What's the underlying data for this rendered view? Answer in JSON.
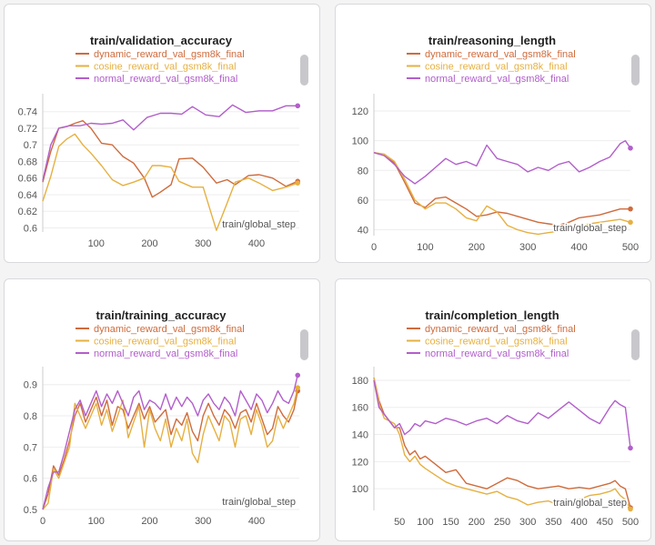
{
  "colors": {
    "dynamic": "#cf6b3c",
    "cosine": "#e6b040",
    "normal": "#b25ecb",
    "tick_text": "#555555",
    "grid": "#eeeeee"
  },
  "chart_data": [
    {
      "id": "validation-accuracy",
      "type": "line",
      "title": "train/validation_accuracy",
      "xlabel": "train/global_step",
      "xlim": [
        0,
        480
      ],
      "ylim": [
        0.595,
        0.755
      ],
      "xticks": [
        100,
        200,
        300,
        400
      ],
      "yticks": [
        0.6,
        0.62,
        0.64,
        0.66,
        0.68,
        0.7,
        0.72,
        0.74
      ],
      "ytick_labels": [
        "0.6",
        "0.62",
        "0.64",
        "0.66",
        "0.68",
        "0.7",
        "0.72",
        "0.74"
      ],
      "legend": [
        "dynamic_reward_val_gsm8k_final",
        "cosine_reward_val_gsm8k_final",
        "normal_reward_val_gsm8k_final"
      ],
      "series": [
        {
          "name": "dynamic_reward_val_gsm8k_final",
          "color_key": "dynamic",
          "x": [
            0,
            15,
            30,
            45,
            60,
            75,
            90,
            110,
            130,
            150,
            170,
            190,
            205,
            220,
            240,
            255,
            280,
            300,
            325,
            345,
            360,
            385,
            405,
            430,
            455,
            477
          ],
          "y": [
            0.655,
            0.692,
            0.72,
            0.722,
            0.726,
            0.729,
            0.72,
            0.702,
            0.7,
            0.686,
            0.678,
            0.66,
            0.637,
            0.643,
            0.652,
            0.683,
            0.684,
            0.673,
            0.654,
            0.658,
            0.652,
            0.663,
            0.664,
            0.66,
            0.65,
            0.656
          ]
        },
        {
          "name": "cosine_reward_val_gsm8k_final",
          "color_key": "cosine",
          "x": [
            0,
            15,
            30,
            45,
            60,
            75,
            90,
            110,
            130,
            150,
            170,
            190,
            205,
            220,
            240,
            255,
            280,
            300,
            325,
            345,
            360,
            385,
            405,
            430,
            455,
            477
          ],
          "y": [
            0.632,
            0.662,
            0.698,
            0.707,
            0.713,
            0.7,
            0.69,
            0.675,
            0.658,
            0.651,
            0.655,
            0.66,
            0.675,
            0.675,
            0.673,
            0.656,
            0.649,
            0.649,
            0.597,
            0.63,
            0.655,
            0.66,
            0.654,
            0.645,
            0.649,
            0.654
          ]
        },
        {
          "name": "normal_reward_val_gsm8k_final",
          "color_key": "normal",
          "x": [
            0,
            15,
            30,
            50,
            70,
            90,
            110,
            130,
            150,
            170,
            195,
            220,
            240,
            260,
            280,
            305,
            330,
            355,
            380,
            405,
            430,
            455,
            477
          ],
          "y": [
            0.657,
            0.7,
            0.72,
            0.723,
            0.723,
            0.726,
            0.725,
            0.726,
            0.73,
            0.718,
            0.733,
            0.738,
            0.738,
            0.737,
            0.746,
            0.736,
            0.734,
            0.748,
            0.739,
            0.741,
            0.741,
            0.747,
            0.747
          ]
        }
      ]
    },
    {
      "id": "reasoning-length",
      "type": "line",
      "title": "train/reasoning_length",
      "xlabel": "train/global_step",
      "xlim": [
        0,
        500
      ],
      "ylim": [
        36,
        128
      ],
      "xticks": [
        0,
        100,
        200,
        300,
        400,
        500
      ],
      "yticks": [
        40,
        60,
        80,
        100,
        120
      ],
      "ytick_labels": [
        "40",
        "60",
        "80",
        "100",
        "120"
      ],
      "legend": [
        "dynamic_reward_val_gsm8k_final",
        "cosine_reward_val_gsm8k_final",
        "normal_reward_val_gsm8k_final"
      ],
      "series": [
        {
          "name": "dynamic_reward_val_gsm8k_final",
          "color_key": "dynamic",
          "x": [
            0,
            20,
            40,
            60,
            80,
            100,
            120,
            140,
            160,
            180,
            200,
            220,
            240,
            260,
            280,
            300,
            320,
            340,
            360,
            380,
            400,
            420,
            440,
            460,
            480,
            500
          ],
          "y": [
            92,
            90,
            85,
            72,
            58,
            55,
            61,
            62,
            58,
            54,
            49,
            50,
            52,
            51,
            49,
            47,
            45,
            44,
            43,
            45,
            48,
            49,
            50,
            52,
            54,
            54
          ]
        },
        {
          "name": "cosine_reward_val_gsm8k_final",
          "color_key": "cosine",
          "x": [
            0,
            20,
            40,
            60,
            80,
            100,
            120,
            140,
            160,
            180,
            200,
            220,
            240,
            260,
            280,
            300,
            320,
            340,
            360,
            380,
            400,
            420,
            440,
            460,
            480,
            500
          ],
          "y": [
            92,
            91,
            86,
            74,
            60,
            54,
            58,
            58,
            54,
            48,
            46,
            56,
            52,
            43,
            40,
            38,
            37,
            38,
            39,
            40,
            42,
            44,
            45,
            46,
            47,
            45
          ]
        },
        {
          "name": "normal_reward_val_gsm8k_final",
          "color_key": "normal",
          "x": [
            0,
            20,
            40,
            60,
            80,
            100,
            120,
            140,
            160,
            180,
            200,
            220,
            240,
            260,
            280,
            300,
            320,
            340,
            360,
            380,
            400,
            420,
            440,
            460,
            480,
            490,
            500
          ],
          "y": [
            92,
            90,
            84,
            76,
            71,
            76,
            82,
            88,
            84,
            86,
            83,
            97,
            88,
            86,
            84,
            79,
            82,
            80,
            84,
            86,
            79,
            82,
            86,
            89,
            98,
            100,
            95
          ]
        }
      ]
    },
    {
      "id": "training-accuracy",
      "type": "line",
      "title": "train/training_accuracy",
      "xlabel": "train/global_step",
      "xlim": [
        0,
        480
      ],
      "ylim": [
        0.5,
        0.94
      ],
      "xticks": [
        0,
        100,
        200,
        300,
        400
      ],
      "yticks": [
        0.5,
        0.6,
        0.7,
        0.8,
        0.9
      ],
      "ytick_labels": [
        "0.5",
        "0.6",
        "0.7",
        "0.8",
        "0.9"
      ],
      "legend": [
        "dynamic_reward_val_gsm8k_final",
        "cosine_reward_val_gsm8k_final",
        "normal_reward_val_gsm8k_final"
      ],
      "series": [
        {
          "name": "dynamic_reward_val_gsm8k_final",
          "color_key": "dynamic",
          "x": [
            0,
            10,
            20,
            30,
            40,
            50,
            60,
            70,
            80,
            90,
            100,
            110,
            120,
            130,
            140,
            150,
            160,
            170,
            180,
            190,
            200,
            210,
            220,
            230,
            240,
            250,
            260,
            270,
            280,
            290,
            300,
            310,
            320,
            330,
            340,
            350,
            360,
            370,
            380,
            390,
            400,
            410,
            420,
            430,
            440,
            450,
            460,
            470,
            477
          ],
          "y": [
            0.5,
            0.55,
            0.64,
            0.61,
            0.66,
            0.72,
            0.8,
            0.84,
            0.78,
            0.82,
            0.86,
            0.8,
            0.85,
            0.77,
            0.83,
            0.82,
            0.76,
            0.8,
            0.84,
            0.79,
            0.83,
            0.78,
            0.8,
            0.82,
            0.74,
            0.79,
            0.77,
            0.81,
            0.75,
            0.72,
            0.8,
            0.84,
            0.8,
            0.77,
            0.82,
            0.8,
            0.76,
            0.81,
            0.82,
            0.78,
            0.84,
            0.79,
            0.74,
            0.76,
            0.83,
            0.8,
            0.78,
            0.82,
            0.88
          ]
        },
        {
          "name": "cosine_reward_val_gsm8k_final",
          "color_key": "cosine",
          "x": [
            0,
            10,
            20,
            30,
            40,
            50,
            60,
            70,
            80,
            90,
            100,
            110,
            120,
            130,
            140,
            150,
            160,
            170,
            180,
            190,
            200,
            210,
            220,
            230,
            240,
            250,
            260,
            270,
            280,
            290,
            300,
            310,
            320,
            330,
            340,
            350,
            360,
            370,
            380,
            390,
            400,
            410,
            420,
            430,
            440,
            450,
            460,
            470,
            477
          ],
          "y": [
            0.5,
            0.52,
            0.63,
            0.6,
            0.65,
            0.7,
            0.84,
            0.8,
            0.76,
            0.8,
            0.84,
            0.77,
            0.82,
            0.75,
            0.8,
            0.85,
            0.73,
            0.78,
            0.83,
            0.7,
            0.82,
            0.76,
            0.72,
            0.79,
            0.7,
            0.76,
            0.72,
            0.79,
            0.68,
            0.65,
            0.74,
            0.8,
            0.76,
            0.72,
            0.8,
            0.78,
            0.7,
            0.79,
            0.8,
            0.74,
            0.82,
            0.77,
            0.7,
            0.72,
            0.8,
            0.76,
            0.8,
            0.84,
            0.89
          ]
        },
        {
          "name": "normal_reward_val_gsm8k_final",
          "color_key": "normal",
          "x": [
            0,
            10,
            20,
            30,
            40,
            50,
            60,
            70,
            80,
            90,
            100,
            110,
            120,
            130,
            140,
            150,
            160,
            170,
            180,
            190,
            200,
            210,
            220,
            230,
            240,
            250,
            260,
            270,
            280,
            290,
            300,
            310,
            320,
            330,
            340,
            350,
            360,
            370,
            380,
            390,
            400,
            410,
            420,
            430,
            440,
            450,
            460,
            470,
            477
          ],
          "y": [
            0.5,
            0.57,
            0.62,
            0.62,
            0.68,
            0.75,
            0.82,
            0.85,
            0.8,
            0.84,
            0.88,
            0.83,
            0.87,
            0.84,
            0.88,
            0.84,
            0.8,
            0.86,
            0.88,
            0.82,
            0.85,
            0.84,
            0.82,
            0.87,
            0.82,
            0.86,
            0.83,
            0.86,
            0.84,
            0.8,
            0.85,
            0.87,
            0.84,
            0.82,
            0.86,
            0.84,
            0.8,
            0.88,
            0.85,
            0.82,
            0.87,
            0.85,
            0.81,
            0.84,
            0.88,
            0.85,
            0.84,
            0.88,
            0.93
          ]
        }
      ]
    },
    {
      "id": "completion-length",
      "type": "line",
      "title": "train/completion_length",
      "xlabel": "train/global_step",
      "xlim": [
        0,
        500
      ],
      "ylim": [
        84,
        186
      ],
      "xticks": [
        50,
        100,
        150,
        200,
        250,
        300,
        350,
        400,
        450,
        500
      ],
      "yticks": [
        100,
        120,
        140,
        160,
        180
      ],
      "ytick_labels": [
        "100",
        "120",
        "140",
        "160",
        "180"
      ],
      "legend": [
        "dynamic_reward_val_gsm8k_final",
        "cosine_reward_val_gsm8k_final",
        "normal_reward_val_gsm8k_final"
      ],
      "series": [
        {
          "name": "dynamic_reward_val_gsm8k_final",
          "color_key": "dynamic",
          "x": [
            0,
            10,
            20,
            30,
            40,
            50,
            60,
            70,
            80,
            90,
            100,
            120,
            140,
            160,
            180,
            200,
            220,
            240,
            260,
            280,
            300,
            320,
            340,
            360,
            380,
            400,
            420,
            440,
            460,
            470,
            480,
            490,
            500
          ],
          "y": [
            182,
            165,
            155,
            150,
            145,
            145,
            132,
            125,
            128,
            122,
            124,
            118,
            112,
            114,
            104,
            102,
            100,
            104,
            108,
            106,
            102,
            100,
            101,
            102,
            100,
            101,
            100,
            102,
            104,
            106,
            102,
            100,
            86
          ]
        },
        {
          "name": "cosine_reward_val_gsm8k_final",
          "color_key": "cosine",
          "x": [
            0,
            10,
            20,
            30,
            40,
            50,
            60,
            70,
            80,
            90,
            100,
            120,
            140,
            160,
            180,
            200,
            220,
            240,
            260,
            280,
            300,
            320,
            340,
            360,
            380,
            400,
            420,
            440,
            460,
            470,
            480,
            490,
            500
          ],
          "y": [
            182,
            163,
            152,
            150,
            148,
            140,
            125,
            120,
            124,
            118,
            115,
            110,
            105,
            102,
            100,
            98,
            96,
            98,
            94,
            92,
            88,
            90,
            91,
            88,
            90,
            92,
            95,
            96,
            98,
            100,
            95,
            92,
            85
          ]
        },
        {
          "name": "normal_reward_val_gsm8k_final",
          "color_key": "normal",
          "x": [
            0,
            10,
            20,
            30,
            40,
            50,
            60,
            70,
            80,
            90,
            100,
            120,
            140,
            160,
            180,
            200,
            220,
            240,
            260,
            280,
            300,
            320,
            340,
            360,
            380,
            400,
            420,
            440,
            460,
            470,
            480,
            490,
            500
          ],
          "y": [
            180,
            160,
            155,
            150,
            145,
            148,
            140,
            143,
            148,
            146,
            150,
            148,
            152,
            150,
            147,
            150,
            152,
            148,
            154,
            150,
            148,
            156,
            152,
            158,
            164,
            158,
            152,
            148,
            160,
            165,
            162,
            160,
            130
          ]
        }
      ]
    }
  ]
}
